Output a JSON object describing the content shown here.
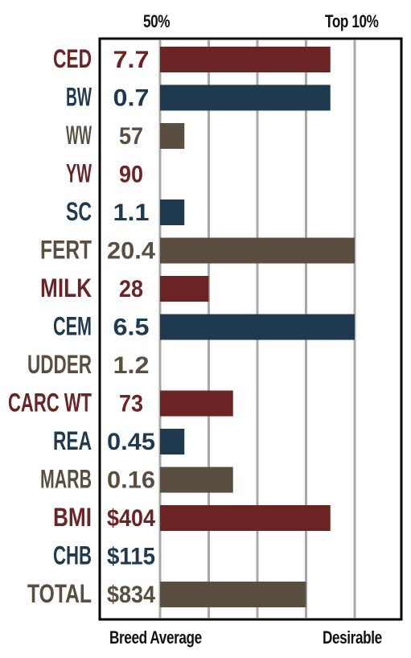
{
  "header": {
    "left_label": "50%",
    "right_label": "Top 10%"
  },
  "footer": {
    "left_label": "Breed Average",
    "right_label": "Desirable"
  },
  "colors": {
    "red": "#6b2424",
    "blue": "#1f3a4f",
    "brown": "#5a4e40",
    "grid": "#a8a8a8",
    "frame": "#000000"
  },
  "chart_data": {
    "type": "bar",
    "orientation": "horizontal",
    "grid": true,
    "xlim": [
      0,
      4
    ],
    "rows": [
      {
        "trait": "CED",
        "value": "7.7",
        "bar": 3.5,
        "color": "red"
      },
      {
        "trait": "BW",
        "value": "0.7",
        "bar": 3.5,
        "color": "blue"
      },
      {
        "trait": "WW",
        "value": "57",
        "bar": 0.5,
        "color": "brown"
      },
      {
        "trait": "YW",
        "value": "90",
        "bar": 0,
        "color": "red"
      },
      {
        "trait": "SC",
        "value": "1.1",
        "bar": 0.5,
        "color": "blue"
      },
      {
        "trait": "FERT",
        "value": "20.4",
        "bar": 4.0,
        "color": "brown"
      },
      {
        "trait": "MILK",
        "value": "28",
        "bar": 1.0,
        "color": "red"
      },
      {
        "trait": "CEM",
        "value": "6.5",
        "bar": 4.0,
        "color": "blue"
      },
      {
        "trait": "UDDER",
        "value": "1.2",
        "bar": 0,
        "color": "brown"
      },
      {
        "trait": "CARC WT",
        "value": "73",
        "bar": 1.5,
        "color": "red"
      },
      {
        "trait": "REA",
        "value": "0.45",
        "bar": 0.5,
        "color": "blue"
      },
      {
        "trait": "MARB",
        "value": "0.16",
        "bar": 1.5,
        "color": "brown"
      },
      {
        "trait": "BMI",
        "value": "$404",
        "bar": 3.5,
        "color": "red"
      },
      {
        "trait": "CHB",
        "value": "$115",
        "bar": 0,
        "color": "blue"
      },
      {
        "trait": "TOTAL",
        "value": "$834",
        "bar": 3.0,
        "color": "brown"
      }
    ]
  }
}
